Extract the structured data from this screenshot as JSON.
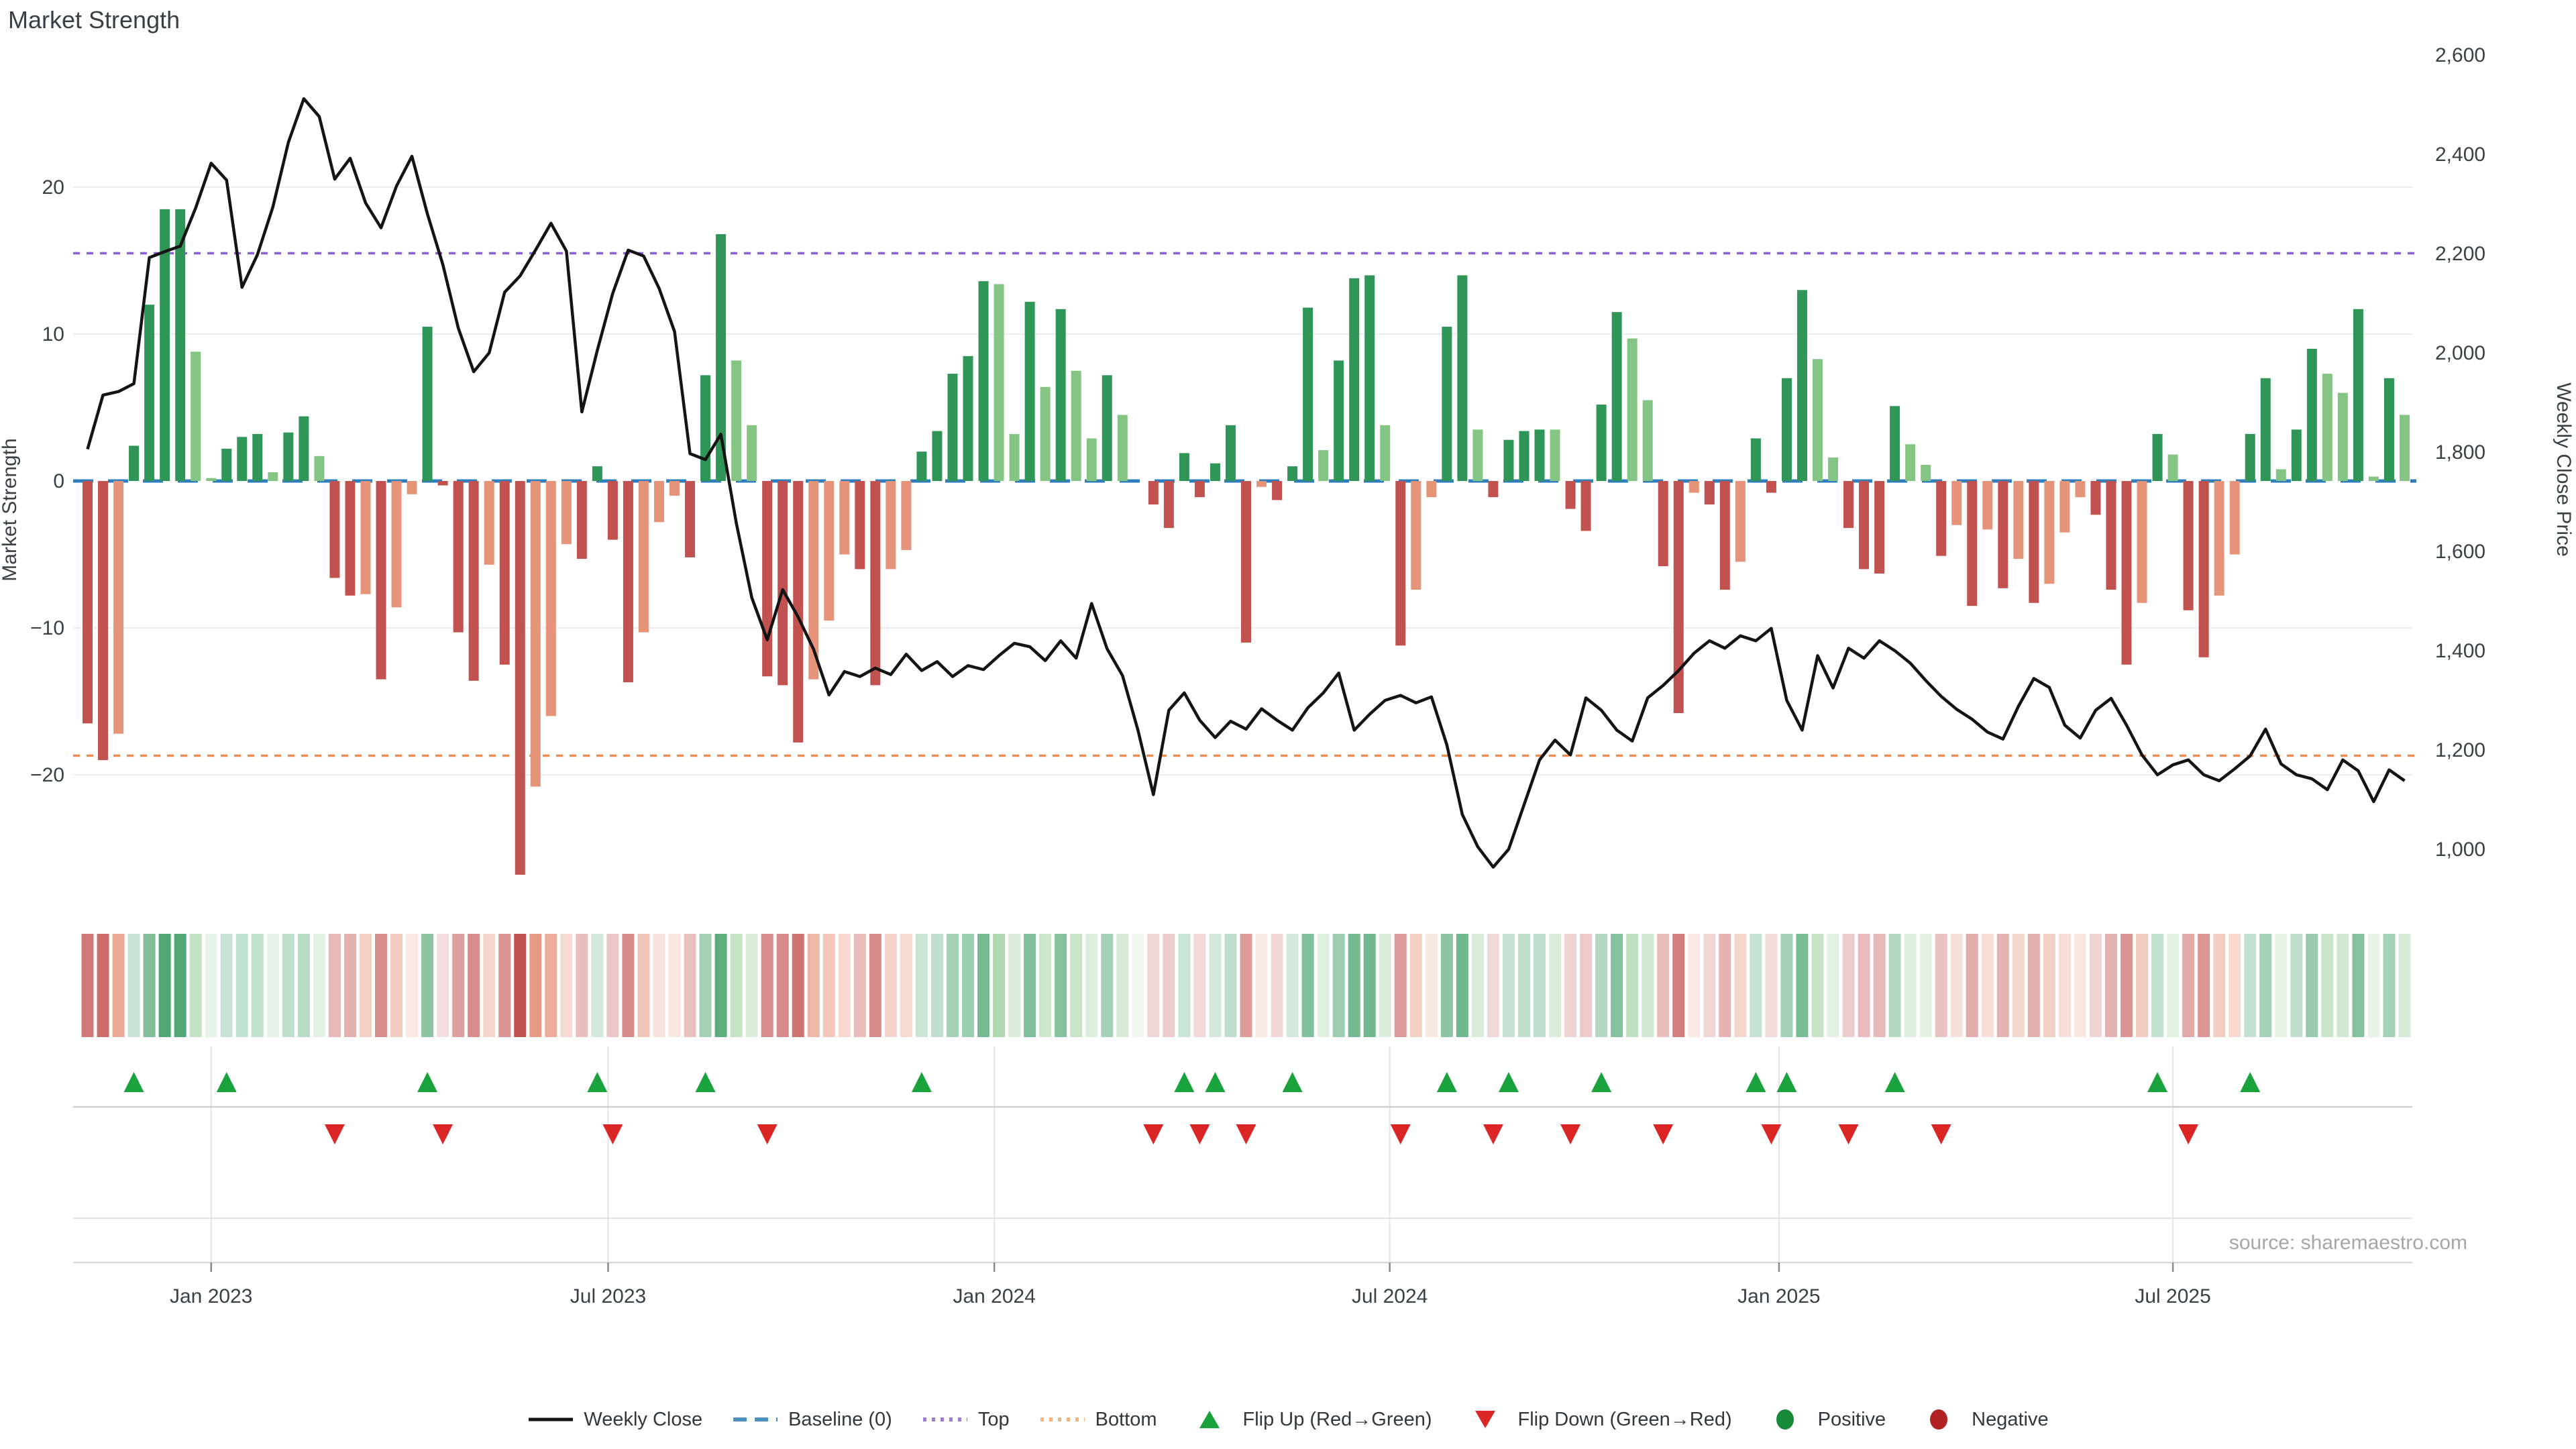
{
  "title": "Market Strength",
  "source": "source: sharemaestro.com",
  "axes": {
    "left": {
      "title": "Market Strength",
      "ticks": [
        "20",
        "10",
        "0",
        "−10",
        "−20"
      ],
      "tick_values": [
        20,
        10,
        0,
        -10,
        -20
      ]
    },
    "right": {
      "title": "Weekly Close Price",
      "ticks": [
        "2,600",
        "2,400",
        "2,200",
        "2,000",
        "1,800",
        "1,600",
        "1,400",
        "1,200",
        "1,000"
      ],
      "tick_values": [
        2600,
        2400,
        2200,
        2000,
        1800,
        1600,
        1400,
        1200,
        1000
      ]
    },
    "x": {
      "tick_labels": [
        "Jan 2023",
        "Jul 2023",
        "Jan 2024",
        "Jul 2024",
        "Jan 2025",
        "Jul 2025"
      ],
      "tick_weeks": [
        8,
        33.7,
        58.7,
        84.3,
        109.5,
        135
      ]
    }
  },
  "colors": {
    "bar_dark_green": "#2F9658",
    "bar_light_green": "#85C584",
    "bar_dark_red": "#C25250",
    "bar_salmon": "#E59379",
    "line": "#141414",
    "baseline": "#2E7EBE",
    "top_line": "#8C5FD6",
    "bottom_line": "#F08A4A",
    "flip_up": "#1AA23C",
    "flip_down": "#DC2626",
    "positive_dot": "#178A3A",
    "negative_dot": "#B22222",
    "grid": "#ECECF2",
    "panel_grid": "#E5E5E5",
    "separator": "#CFCFCF",
    "axis_line": "#D9D9D9"
  },
  "legend": {
    "items": [
      {
        "type": "line",
        "color": "#141414",
        "label": "Weekly Close"
      },
      {
        "type": "dash",
        "color": "#4A8FC0",
        "label": "Baseline (0)"
      },
      {
        "type": "dot",
        "color": "#9B7BD8",
        "label": "Top"
      },
      {
        "type": "dot",
        "color": "#F3B27E",
        "label": "Bottom"
      },
      {
        "type": "tri-up",
        "color": "#1AA23C",
        "label": "Flip Up (Red→Green)"
      },
      {
        "type": "tri-down",
        "color": "#DC2626",
        "label": "Flip Down (Green→Red)"
      },
      {
        "type": "circle",
        "color": "#178A3A",
        "label": "Positive"
      },
      {
        "type": "circle",
        "color": "#B22222",
        "label": "Negative"
      }
    ]
  },
  "chart_data": {
    "type": "bar",
    "title": "Market Strength",
    "x_unit": "week",
    "ylabel_left": "Market Strength",
    "ylabel_right": "Weekly Close Price",
    "ylim_left": [
      -28,
      29
    ],
    "ylim_right": [
      907,
      2609
    ],
    "grid": true,
    "legend_position": "bottom-center",
    "annotations": {
      "baseline": 0,
      "top": 15.5,
      "bottom": -18.7
    },
    "series": [
      {
        "name": "Market Strength",
        "type": "bar",
        "axis": "left",
        "values": [
          -16.5,
          -19,
          -17.2,
          2.4,
          12,
          18.5,
          18.5,
          8.8,
          0.2,
          2.2,
          3,
          3.2,
          0.6,
          3.3,
          4.4,
          1.7,
          -6.6,
          -7.8,
          -7.7,
          -13.5,
          -8.6,
          -0.9,
          10.5,
          -0.3,
          -10.3,
          -13.6,
          -5.7,
          -12.5,
          -26.8,
          -20.8,
          -16,
          -4.3,
          -5.3,
          1,
          -4,
          -13.7,
          -10.3,
          -2.8,
          -1,
          -5.2,
          7.2,
          16.8,
          8.2,
          3.8,
          -13.3,
          -13.9,
          -17.8,
          -13.5,
          -9.5,
          -5,
          -6,
          -13.9,
          -6,
          -4.7,
          2,
          3.4,
          7.3,
          8.5,
          13.6,
          13.4,
          3.2,
          12.2,
          6.4,
          11.7,
          7.5,
          2.9,
          7.2,
          4.5,
          0,
          -1.6,
          -3.2,
          1.9,
          -1.1,
          1.2,
          3.8,
          -11,
          -0.4,
          -1.3,
          1,
          11.8,
          2.1,
          8.2,
          13.8,
          14,
          3.8,
          -11.2,
          -7.4,
          -1.1,
          10.5,
          14,
          3.5,
          -1.1,
          2.8,
          3.4,
          3.5,
          3.5,
          -1.9,
          -3.4,
          5.2,
          11.5,
          9.7,
          5.5,
          -5.8,
          -15.8,
          -0.8,
          -1.6,
          -7.4,
          -5.5,
          2.9,
          -0.8,
          7,
          13,
          8.3,
          1.6,
          -3.2,
          -6,
          -6.3,
          5.1,
          2.5,
          1.1,
          -5.1,
          -3,
          -8.5,
          -3.3,
          -7.3,
          -5.3,
          -8.3,
          -7,
          -3.5,
          -1.1,
          -2.3,
          -7.4,
          -12.5,
          -8.3,
          3.2,
          1.8,
          -8.8,
          -12,
          -7.8,
          -5,
          3.2,
          7,
          0.8,
          3.5,
          9,
          7.3,
          6,
          11.7,
          0.3,
          7,
          4.5
        ],
        "bar_color_classes": [
          "dr",
          "dr",
          "sa",
          "dg",
          "dg",
          "dg",
          "dg",
          "lg",
          "lg",
          "dg",
          "dg",
          "dg",
          "lg",
          "dg",
          "dg",
          "lg",
          "dr",
          "dr",
          "sa",
          "dr",
          "sa",
          "sa",
          "dg",
          "dr",
          "dr",
          "dr",
          "sa",
          "dr",
          "dr",
          "sa",
          "sa",
          "sa",
          "dr",
          "dg",
          "dr",
          "dr",
          "sa",
          "sa",
          "sa",
          "dr",
          "dg",
          "dg",
          "lg",
          "lg",
          "dr",
          "dr",
          "dr",
          "sa",
          "sa",
          "sa",
          "dr",
          "dr",
          "sa",
          "sa",
          "dg",
          "dg",
          "dg",
          "dg",
          "dg",
          "lg",
          "lg",
          "dg",
          "lg",
          "dg",
          "lg",
          "lg",
          "dg",
          "lg",
          "lg",
          "dr",
          "dr",
          "dg",
          "dr",
          "dg",
          "dg",
          "dr",
          "sa",
          "dr",
          "dg",
          "dg",
          "lg",
          "dg",
          "dg",
          "dg",
          "lg",
          "dr",
          "sa",
          "sa",
          "dg",
          "dg",
          "lg",
          "dr",
          "dg",
          "dg",
          "dg",
          "lg",
          "dr",
          "dr",
          "dg",
          "dg",
          "lg",
          "lg",
          "dr",
          "dr",
          "sa",
          "dr",
          "dr",
          "sa",
          "dg",
          "dr",
          "dg",
          "dg",
          "lg",
          "lg",
          "dr",
          "dr",
          "dr",
          "dg",
          "lg",
          "lg",
          "dr",
          "sa",
          "dr",
          "sa",
          "dr",
          "sa",
          "dr",
          "sa",
          "sa",
          "sa",
          "dr",
          "dr",
          "dr",
          "sa",
          "dg",
          "lg",
          "dr",
          "dr",
          "sa",
          "sa",
          "dg",
          "dg",
          "lg",
          "dg",
          "dg",
          "lg",
          "lg",
          "dg",
          "lg",
          "dg",
          "lg"
        ]
      },
      {
        "name": "Weekly Close",
        "type": "line",
        "axis": "right",
        "values": [
          1806,
          1915,
          1922,
          1938,
          2192,
          2204,
          2215,
          2292,
          2382,
          2348,
          2132,
          2198,
          2294,
          2424,
          2512,
          2476,
          2350,
          2392,
          2302,
          2252,
          2336,
          2396,
          2280,
          2178,
          2050,
          1962,
          2000,
          2122,
          2155,
          2207,
          2261,
          2205,
          1881,
          2005,
          2120,
          2207,
          2195,
          2130,
          2043,
          1797,
          1785,
          1836,
          1657,
          1507,
          1422,
          1523,
          1468,
          1403,
          1311,
          1358,
          1348,
          1365,
          1352,
          1393,
          1360,
          1378,
          1348,
          1370,
          1362,
          1390,
          1415,
          1408,
          1380,
          1420,
          1385,
          1495,
          1404,
          1350,
          1240,
          1110,
          1280,
          1315,
          1260,
          1225,
          1258,
          1242,
          1283,
          1260,
          1240,
          1285,
          1315,
          1355,
          1240,
          1272,
          1300,
          1310,
          1295,
          1307,
          1210,
          1070,
          1005,
          964,
          1000,
          1090,
          1180,
          1220,
          1190,
          1305,
          1280,
          1240,
          1218,
          1305,
          1330,
          1360,
          1395,
          1420,
          1405,
          1430,
          1420,
          1445,
          1300,
          1240,
          1390,
          1325,
          1405,
          1385,
          1420,
          1400,
          1375,
          1340,
          1308,
          1282,
          1262,
          1236,
          1222,
          1288,
          1344,
          1326,
          1250,
          1224,
          1280,
          1304,
          1250,
          1190,
          1150,
          1170,
          1180,
          1150,
          1138,
          1162,
          1188,
          1242,
          1172,
          1150,
          1142,
          1120,
          1180,
          1158,
          1096,
          1160,
          1138
        ]
      }
    ],
    "flip_up_weeks": [
      3,
      9,
      22,
      33,
      40,
      54,
      71,
      73,
      78,
      88,
      92,
      98,
      108,
      110,
      117,
      134,
      140
    ],
    "flip_down_weeks": [
      16,
      23,
      34,
      44,
      69,
      72,
      75,
      85,
      91,
      96,
      102,
      109,
      114,
      120,
      136
    ]
  }
}
